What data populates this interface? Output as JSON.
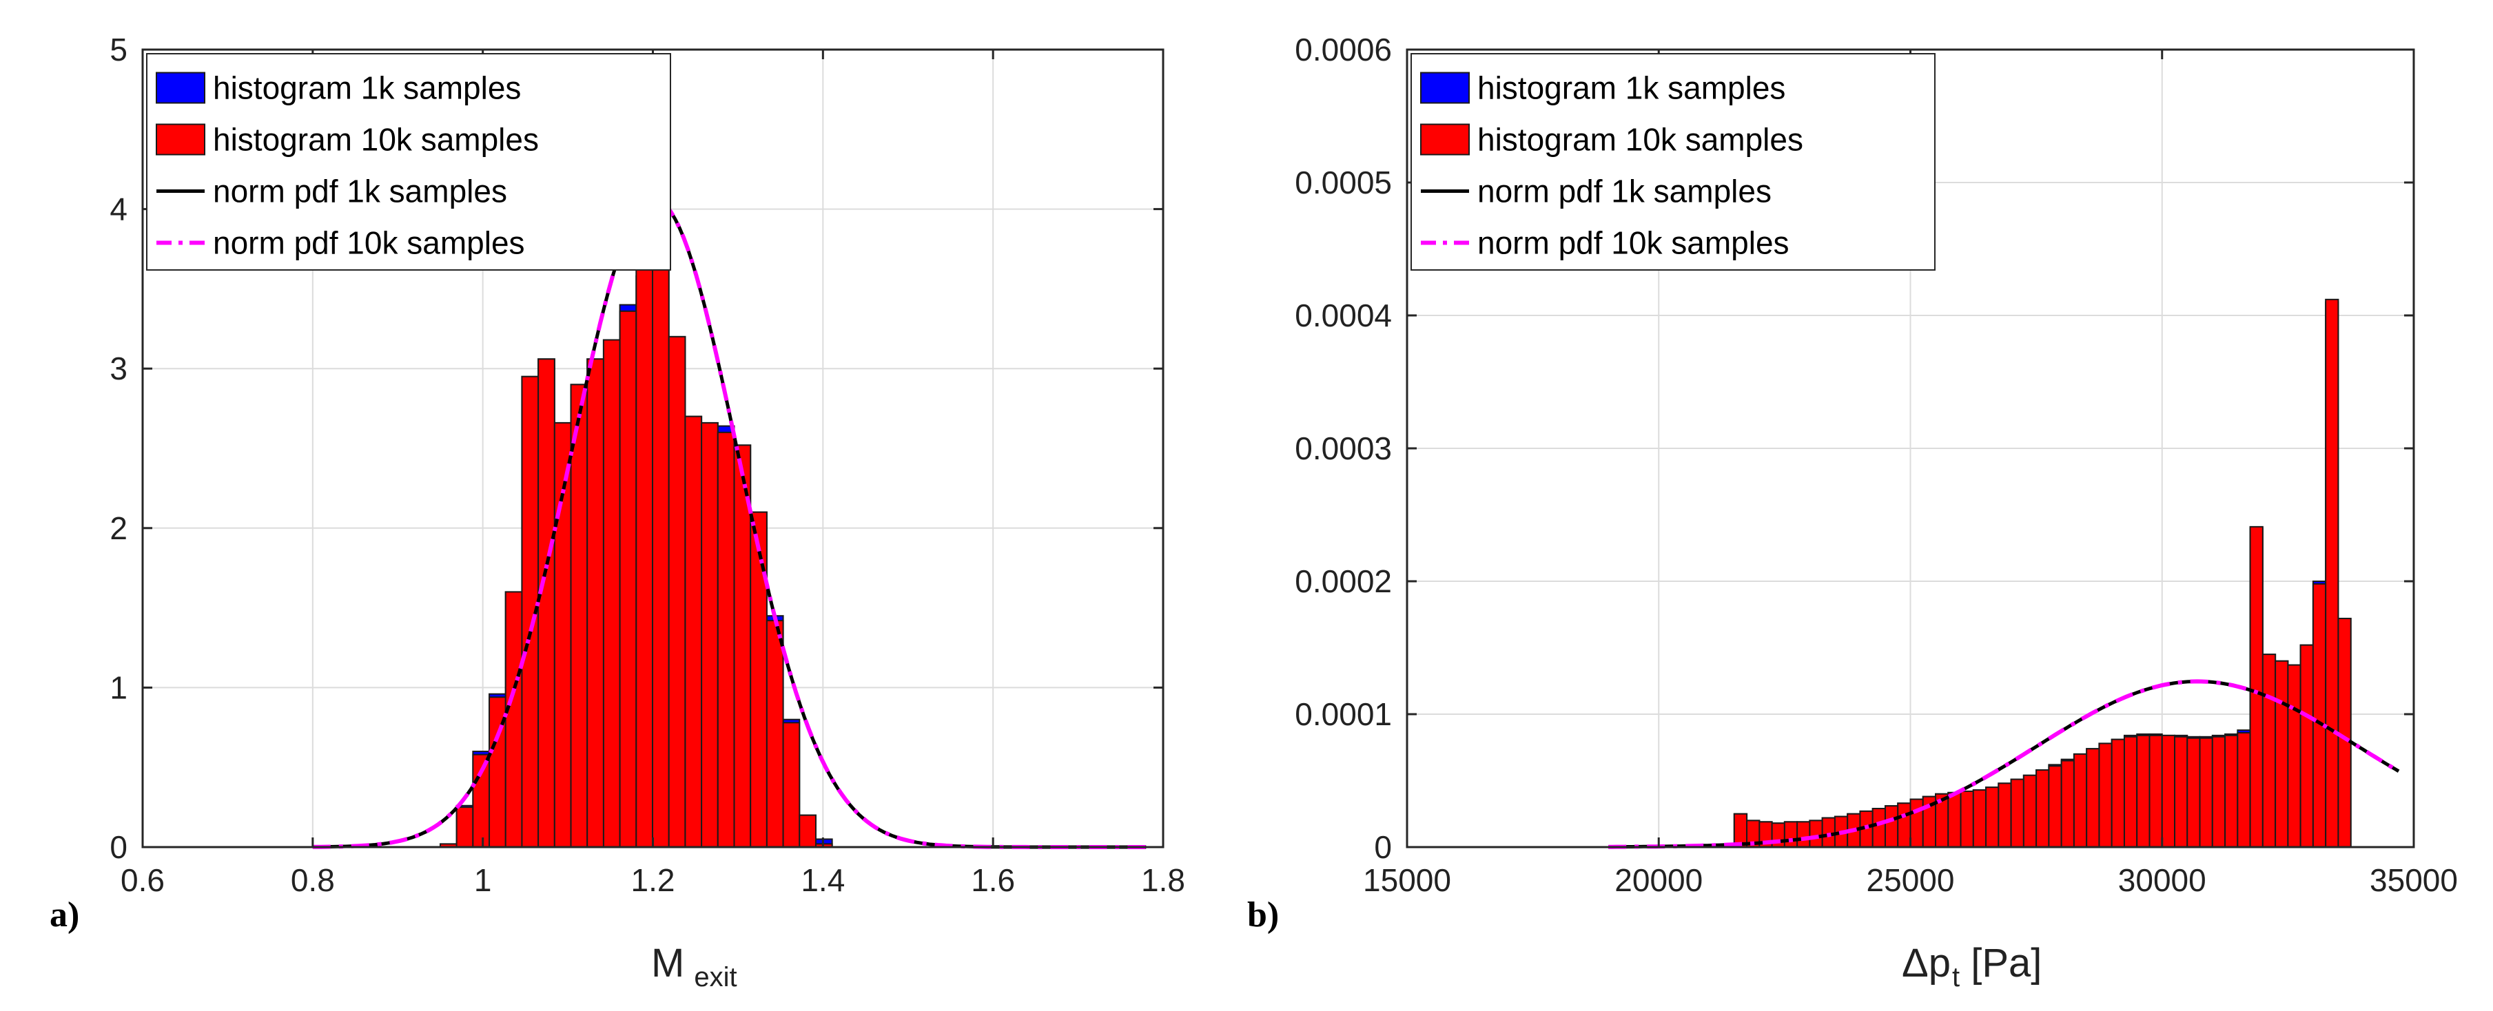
{
  "chart_data": [
    {
      "type": "bar",
      "panel_label": "a)",
      "title": "",
      "xlabel_main": "M",
      "xlabel_sub": "exit",
      "ylabel": "",
      "xlim": [
        0.6,
        1.8
      ],
      "ylim": [
        0,
        5
      ],
      "xticks": [
        0.6,
        0.8,
        1,
        1.2,
        1.4,
        1.6,
        1.8
      ],
      "xtick_labels": [
        "0.6",
        "0.8",
        "1",
        "1.2",
        "1.4",
        "1.6",
        "1.8"
      ],
      "yticks": [
        0,
        1,
        2,
        3,
        4,
        5
      ],
      "ytick_labels": [
        "0",
        "1",
        "2",
        "3",
        "4",
        "5"
      ],
      "grid": true,
      "legend_position": "top-left",
      "legend": [
        {
          "label": "histogram 1k samples",
          "kind": "patch",
          "color": "#0000ff"
        },
        {
          "label": "histogram 10k samples",
          "kind": "patch",
          "color": "#ff0000"
        },
        {
          "label": "norm pdf 1k samples",
          "kind": "line",
          "color": "#000000",
          "dash": "solid"
        },
        {
          "label": "norm pdf 10k samples",
          "kind": "line",
          "color": "#ff00ff",
          "dash": "dashdot"
        }
      ],
      "bin_width": 0.0192,
      "bin_centers": [
        0.9596,
        0.9788,
        0.998,
        1.0172,
        1.0364,
        1.0556,
        1.0748,
        1.094,
        1.1132,
        1.1324,
        1.1516,
        1.1708,
        1.19,
        1.2092,
        1.2284,
        1.2476,
        1.2668,
        1.286,
        1.3052,
        1.3244,
        1.3436,
        1.3628,
        1.382,
        1.4012,
        1.4204
      ],
      "series": [
        {
          "name": "histogram 1k samples",
          "values": [
            0,
            0.26,
            0.6,
            0.96,
            1.6,
            2.95,
            3.06,
            2.66,
            2.9,
            3.06,
            3.18,
            3.4,
            3.58,
            3.7,
            3.2,
            2.7,
            2.66,
            2.64,
            2.52,
            2.1,
            1.45,
            0.8,
            0.2,
            0.05,
            0
          ]
        },
        {
          "name": "histogram 10k samples",
          "values": [
            0.02,
            0.25,
            0.58,
            0.94,
            1.6,
            2.95,
            3.06,
            2.66,
            2.9,
            3.06,
            3.18,
            3.36,
            3.66,
            3.68,
            3.2,
            2.7,
            2.66,
            2.6,
            2.52,
            2.1,
            1.42,
            0.78,
            0.2,
            0.02,
            0
          ]
        },
        {
          "name": "norm pdf 1k samples",
          "mean": 1.202,
          "std": 0.0983,
          "x_range": [
            0.8,
            1.78
          ]
        },
        {
          "name": "norm pdf 10k samples",
          "mean": 1.202,
          "std": 0.0983,
          "x_range": [
            0.8,
            1.78
          ]
        }
      ]
    },
    {
      "type": "bar",
      "panel_label": "b)",
      "title": "",
      "xlabel_main": "Δp",
      "xlabel_sub": "t",
      "xlabel_tail": " [Pa]",
      "ylabel": "",
      "xlim": [
        15000,
        35000
      ],
      "ylim": [
        0,
        0.0006
      ],
      "xticks": [
        15000,
        20000,
        25000,
        30000,
        35000
      ],
      "xtick_labels": [
        "15000",
        "20000",
        "25000",
        "30000",
        "35000"
      ],
      "yticks": [
        0,
        0.0001,
        0.0002,
        0.0003,
        0.0004,
        0.0005,
        0.0006
      ],
      "ytick_labels": [
        "0",
        "0.0001",
        "0.0002",
        "0.0003",
        "0.0004",
        "0.0005",
        "0.0006"
      ],
      "grid": true,
      "legend_position": "top-left",
      "legend": [
        {
          "label": "histogram 1k samples",
          "kind": "patch",
          "color": "#0000ff"
        },
        {
          "label": "histogram 10k samples",
          "kind": "patch",
          "color": "#ff0000"
        },
        {
          "label": "norm pdf 1k samples",
          "kind": "line",
          "color": "#000000",
          "dash": "solid"
        },
        {
          "label": "norm pdf 10k samples",
          "kind": "line",
          "color": "#ff00ff",
          "dash": "dashdot"
        }
      ],
      "bin_width": 250,
      "bin_centers": [
        21625,
        21875,
        22125,
        22375,
        22625,
        22875,
        23125,
        23375,
        23625,
        23875,
        24125,
        24375,
        24625,
        24875,
        25125,
        25375,
        25625,
        25875,
        26125,
        26375,
        26625,
        26875,
        27125,
        27375,
        27625,
        27875,
        28125,
        28375,
        28625,
        28875,
        29125,
        29375,
        29625,
        29875,
        30125,
        30375,
        30625,
        30875,
        31125,
        31375,
        31625,
        31875,
        32125,
        32375,
        32625,
        32875,
        33125,
        33375,
        33625,
        33875
      ],
      "series": [
        {
          "name": "histogram 1k samples",
          "values": [
            2.5e-05,
            2e-05,
            1.9e-05,
            1.8e-05,
            1.9e-05,
            1.9e-05,
            2e-05,
            2.2e-05,
            2.3e-05,
            2.5e-05,
            2.7e-05,
            2.9e-05,
            3.1e-05,
            3.3e-05,
            3.6e-05,
            3.8e-05,
            4e-05,
            4.1e-05,
            4.2e-05,
            4.3e-05,
            4.5e-05,
            4.8e-05,
            5.1e-05,
            5.4e-05,
            5.8e-05,
            6.2e-05,
            6.6e-05,
            7e-05,
            7.4e-05,
            7.8e-05,
            8.1e-05,
            8.4e-05,
            8.5e-05,
            8.5e-05,
            8.4e-05,
            8.4e-05,
            8.3e-05,
            8.3e-05,
            8.4e-05,
            8.5e-05,
            8.8e-05,
            0.00024,
            0.000145,
            0.00014,
            0.000137,
            0.000152,
            0.0002,
            0.00041,
            0.000172,
            0
          ]
        },
        {
          "name": "histogram 10k samples",
          "values": [
            2.5e-05,
            2e-05,
            1.9e-05,
            1.8e-05,
            1.9e-05,
            1.9e-05,
            2e-05,
            2.2e-05,
            2.3e-05,
            2.5e-05,
            2.7e-05,
            2.9e-05,
            3.1e-05,
            3.3e-05,
            3.6e-05,
            3.8e-05,
            4e-05,
            4.1e-05,
            4.2e-05,
            4.3e-05,
            4.5e-05,
            4.8e-05,
            5.1e-05,
            5.4e-05,
            5.8e-05,
            6.1e-05,
            6.5e-05,
            7e-05,
            7.4e-05,
            7.8e-05,
            8.1e-05,
            8.3e-05,
            8.4e-05,
            8.4e-05,
            8.4e-05,
            8.3e-05,
            8.2e-05,
            8.2e-05,
            8.3e-05,
            8.4e-05,
            8.6e-05,
            0.000241,
            0.000145,
            0.00014,
            0.000137,
            0.000152,
            0.000198,
            0.000412,
            0.000172,
            0
          ]
        },
        {
          "name": "norm pdf 1k samples",
          "mean": 30700,
          "std": 3200,
          "x_range": [
            19000,
            34700
          ]
        },
        {
          "name": "norm pdf 10k samples",
          "mean": 30700,
          "std": 3200,
          "x_range": [
            19000,
            34700
          ]
        }
      ]
    }
  ]
}
